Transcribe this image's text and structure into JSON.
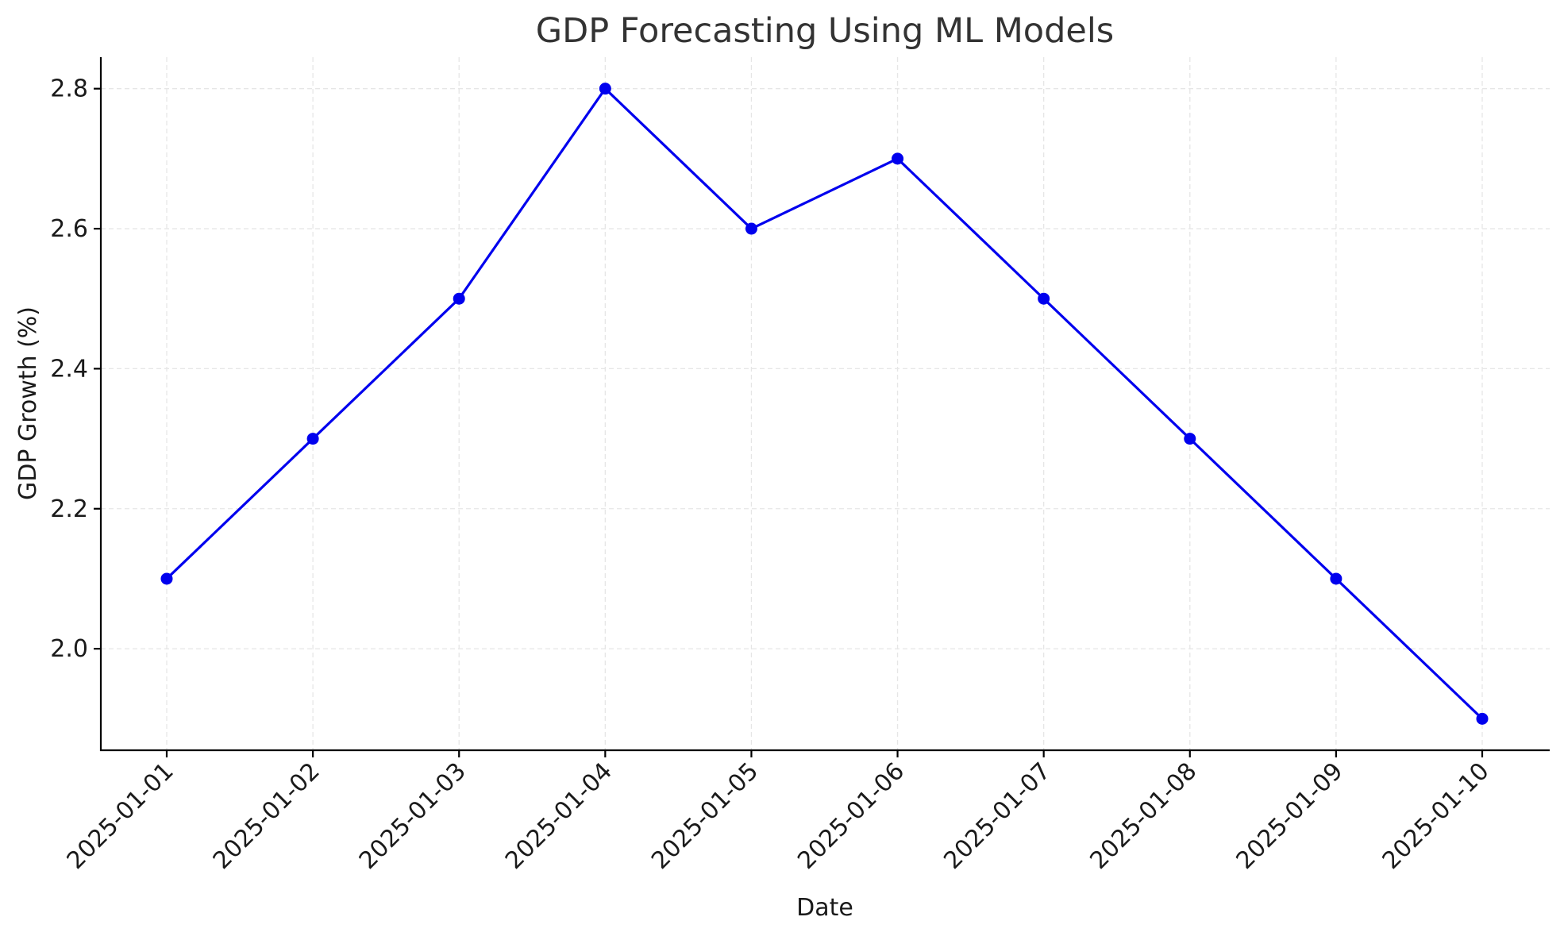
{
  "chart_data": {
    "type": "line",
    "title": "GDP Forecasting Using ML Models",
    "xlabel": "Date",
    "ylabel": "GDP Growth (%)",
    "x": [
      "2025-01-01",
      "2025-01-02",
      "2025-01-03",
      "2025-01-04",
      "2025-01-05",
      "2025-01-06",
      "2025-01-07",
      "2025-01-08",
      "2025-01-09",
      "2025-01-10"
    ],
    "series": [
      {
        "values": [
          2.1,
          2.3,
          2.5,
          2.8,
          2.6,
          2.7,
          2.5,
          2.3,
          2.1,
          1.9
        ],
        "color": "#0000ee",
        "marker": "circle"
      }
    ],
    "yticks": [
      "2.0",
      "2.2",
      "2.4",
      "2.6",
      "2.8"
    ],
    "ylim": [
      1.855,
      2.845
    ],
    "grid": true,
    "legend": "none"
  }
}
